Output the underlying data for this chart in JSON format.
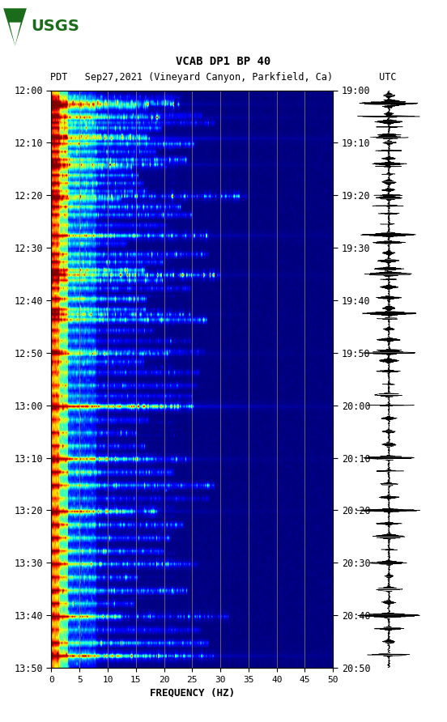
{
  "title_line1": "VCAB DP1 BP 40",
  "title_line2": "PDT   Sep27,2021 (Vineyard Canyon, Parkfield, Ca)        UTC",
  "xlabel": "FREQUENCY (HZ)",
  "freq_min": 0,
  "freq_max": 50,
  "freq_ticks": [
    0,
    5,
    10,
    15,
    20,
    25,
    30,
    35,
    40,
    45,
    50
  ],
  "left_times": [
    "12:00",
    "12:10",
    "12:20",
    "12:30",
    "12:40",
    "12:50",
    "13:00",
    "13:10",
    "13:20",
    "13:30",
    "13:40",
    "13:50"
  ],
  "right_times": [
    "19:00",
    "19:10",
    "19:20",
    "19:30",
    "19:40",
    "19:50",
    "20:00",
    "20:10",
    "20:20",
    "20:30",
    "20:40",
    "20:50"
  ],
  "n_time_bins": 220,
  "n_freq_bins": 300,
  "colormap": "jet",
  "bg_color": "white",
  "grid_color": "#9B8B6B",
  "grid_alpha": 0.7,
  "vline_freqs": [
    5,
    10,
    15,
    20,
    25,
    30,
    35,
    40,
    45
  ],
  "seed": 42,
  "event_rows": [
    2,
    4,
    6,
    9,
    12,
    14,
    17,
    20,
    23,
    26,
    29,
    32,
    35,
    38,
    41,
    44,
    47,
    51,
    55,
    58,
    62,
    65,
    68,
    72,
    75,
    79,
    83,
    87,
    91,
    95,
    99,
    103,
    107,
    112,
    116,
    120,
    125,
    130,
    135,
    140,
    145,
    150,
    155,
    160,
    165,
    170,
    175,
    180,
    185,
    190,
    195,
    200,
    205,
    210,
    215
  ],
  "broad_events": [
    5,
    10,
    18,
    28,
    40,
    55,
    70,
    85,
    100,
    120,
    140,
    160,
    180,
    200,
    215
  ]
}
